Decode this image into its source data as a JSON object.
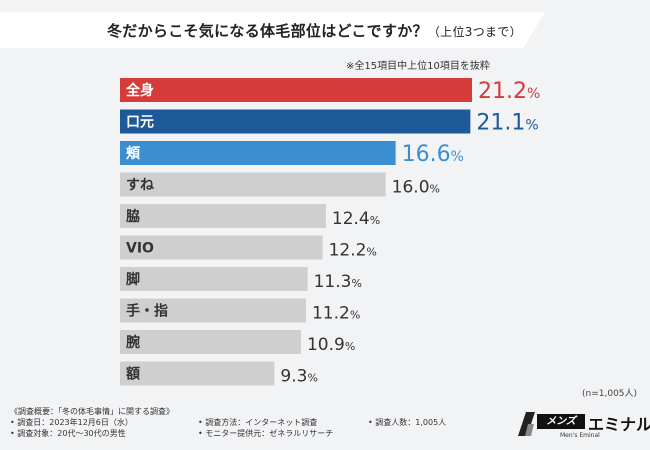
{
  "header": {
    "title": "冬だからこそ気になる体毛部位はどこですか？",
    "title_sub": "（上位3つまで）",
    "note": "※全15項目中上位10項目を抜粋"
  },
  "chart_data": {
    "type": "bar",
    "orientation": "horizontal",
    "title": "冬だからこそ気になる体毛部位はどこですか？（上位3つまで）",
    "categories": [
      "全身",
      "口元",
      "頬",
      "すね",
      "脇",
      "VIO",
      "脚",
      "手・指",
      "腕",
      "額"
    ],
    "values": [
      21.2,
      21.1,
      16.6,
      16.0,
      12.4,
      12.2,
      11.3,
      11.2,
      10.9,
      9.3
    ],
    "value_labels": [
      "21.2%",
      "21.1%",
      "16.6%",
      "16.0%",
      "12.4%",
      "12.2%",
      "11.3%",
      "11.2%",
      "10.9%",
      "9.3%"
    ],
    "highlight_colors": [
      "#d63b3b",
      "#1e5a9a",
      "#3b8fd0"
    ],
    "default_color": "#cfcfcf",
    "xlim": [
      0,
      21.2
    ],
    "xlabel": "",
    "ylabel": ""
  },
  "sample_note": "(n=1,005人)",
  "footer": {
    "summary_title": "《調査概要：「冬の体毛事情」に関する調査》",
    "date": "• 調査日：2023年12月6日（水）",
    "method": "• 調査方法：インターネット調査",
    "count": "• 調査人数：1,005人",
    "target": "• 調査対象：20代～30代の男性",
    "provider": "• モニター提供元：ゼネラルリサーチ"
  },
  "logo": {
    "badge": "メンズ",
    "name": "エミナル",
    "tagline": "Men's Eminal"
  }
}
